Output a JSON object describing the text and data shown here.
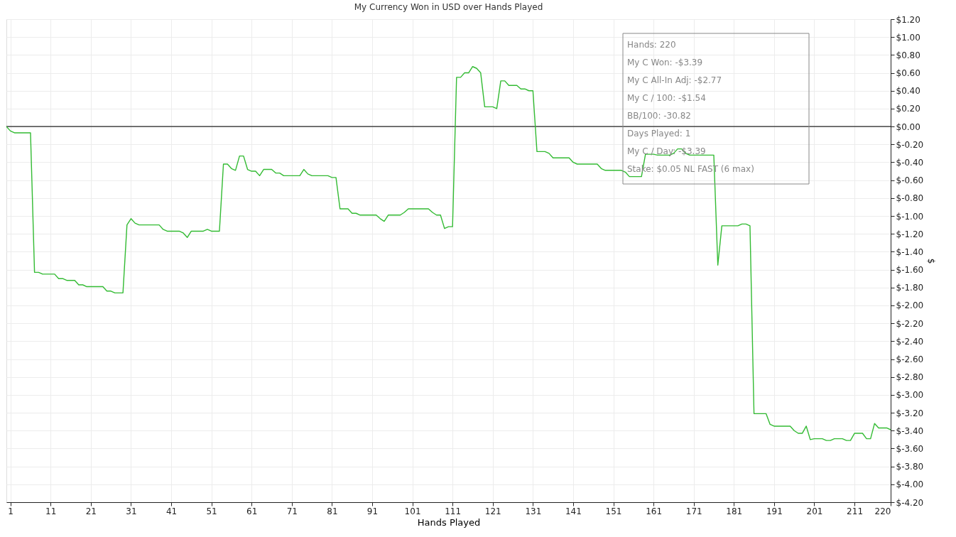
{
  "chart_data": {
    "type": "line",
    "title": "My Currency Won in USD over Hands Played",
    "xlabel": "Hands Played",
    "ylabel": "$",
    "x": [
      0,
      1,
      2,
      6,
      7,
      8,
      9,
      12,
      13,
      14,
      15,
      17,
      18,
      19,
      20,
      24,
      25,
      26,
      27,
      29,
      30,
      31,
      32,
      33,
      38,
      39,
      40,
      43,
      44,
      45,
      46,
      49,
      50,
      51,
      53,
      54,
      55,
      56,
      57,
      58,
      59,
      60,
      61,
      62,
      63,
      64,
      66,
      67,
      68,
      69,
      73,
      74,
      75,
      76,
      80,
      81,
      82,
      83,
      85,
      86,
      87,
      88,
      92,
      93,
      94,
      95,
      98,
      99,
      100,
      105,
      106,
      107,
      108,
      109,
      110,
      111,
      112,
      113,
      114,
      115,
      116,
      117,
      118,
      119,
      121,
      122,
      123,
      124,
      125,
      127,
      128,
      129,
      130,
      131,
      132,
      134,
      135,
      136,
      140,
      141,
      142,
      147,
      148,
      149,
      153,
      154,
      155,
      158,
      159,
      161,
      162,
      165,
      166,
      167,
      168,
      169,
      170,
      176,
      177,
      178,
      182,
      183,
      184,
      185,
      186,
      189,
      190,
      191,
      195,
      196,
      197,
      198,
      199,
      200,
      201,
      203,
      204,
      205,
      206,
      208,
      209,
      210,
      211,
      213,
      214,
      215,
      216,
      217,
      219,
      220
    ],
    "series": [
      {
        "color": "#33bb33",
        "values": [
          0,
          -0.05,
          -0.07,
          -0.07,
          -1.63,
          -1.63,
          -1.65,
          -1.65,
          -1.7,
          -1.7,
          -1.72,
          -1.72,
          -1.77,
          -1.77,
          -1.79,
          -1.79,
          -1.84,
          -1.84,
          -1.86,
          -1.86,
          -1.1,
          -1.03,
          -1.08,
          -1.1,
          -1.1,
          -1.15,
          -1.17,
          -1.17,
          -1.19,
          -1.24,
          -1.17,
          -1.17,
          -1.15,
          -1.17,
          -1.17,
          -0.42,
          -0.42,
          -0.47,
          -0.49,
          -0.33,
          -0.33,
          -0.48,
          -0.5,
          -0.5,
          -0.55,
          -0.48,
          -0.48,
          -0.52,
          -0.52,
          -0.55,
          -0.55,
          -0.48,
          -0.53,
          -0.55,
          -0.55,
          -0.57,
          -0.57,
          -0.92,
          -0.92,
          -0.97,
          -0.97,
          -0.99,
          -0.99,
          -1.03,
          -1.06,
          -0.99,
          -0.99,
          -0.96,
          -0.92,
          -0.92,
          -0.96,
          -0.99,
          -0.99,
          -1.14,
          -1.12,
          -1.12,
          0.55,
          0.55,
          0.6,
          0.6,
          0.67,
          0.65,
          0.6,
          0.22,
          0.22,
          0.2,
          0.51,
          0.51,
          0.46,
          0.46,
          0.42,
          0.42,
          0.4,
          0.4,
          -0.28,
          -0.28,
          -0.3,
          -0.35,
          -0.35,
          -0.4,
          -0.42,
          -0.42,
          -0.47,
          -0.49,
          -0.49,
          -0.51,
          -0.56,
          -0.56,
          -0.31,
          -0.31,
          -0.32,
          -0.32,
          -0.3,
          -0.25,
          -0.25,
          -0.3,
          -0.32,
          -0.32,
          -1.55,
          -1.11,
          -1.11,
          -1.09,
          -1.09,
          -1.11,
          -3.21,
          -3.21,
          -3.33,
          -3.35,
          -3.35,
          -3.4,
          -3.43,
          -3.43,
          -3.35,
          -3.5,
          -3.49,
          -3.49,
          -3.51,
          -3.51,
          -3.49,
          -3.49,
          -3.51,
          -3.51,
          -3.43,
          -3.43,
          -3.49,
          -3.49,
          -3.32,
          -3.37,
          -3.37,
          -3.39
        ]
      }
    ],
    "xlim": [
      0,
      220
    ],
    "xticks": [
      1,
      11,
      21,
      31,
      41,
      51,
      61,
      71,
      81,
      91,
      101,
      111,
      121,
      131,
      141,
      151,
      161,
      171,
      181,
      191,
      201,
      211,
      220
    ],
    "ylim": [
      -4.2,
      1.2
    ],
    "yticks": [
      {
        "value": 1.2,
        "label": "$1.20"
      },
      {
        "value": 1.0,
        "label": "$1.00"
      },
      {
        "value": 0.8,
        "label": "$0.80"
      },
      {
        "value": 0.6,
        "label": "$0.60"
      },
      {
        "value": 0.4,
        "label": "$0.40"
      },
      {
        "value": 0.2,
        "label": "$0.20"
      },
      {
        "value": 0,
        "label": "$0.00"
      },
      {
        "value": -0.2,
        "label": "$-0.20"
      },
      {
        "value": -0.4,
        "label": "$-0.40"
      },
      {
        "value": -0.6,
        "label": "$-0.60"
      },
      {
        "value": -0.8,
        "label": "$-0.80"
      },
      {
        "value": -1.0,
        "label": "$-1.00"
      },
      {
        "value": -1.2,
        "label": "$-1.20"
      },
      {
        "value": -1.4,
        "label": "$-1.40"
      },
      {
        "value": -1.6,
        "label": "$-1.60"
      },
      {
        "value": -1.8,
        "label": "$-1.80"
      },
      {
        "value": -2.0,
        "label": "$-2.00"
      },
      {
        "value": -2.2,
        "label": "$-2.20"
      },
      {
        "value": -2.4,
        "label": "$-2.40"
      },
      {
        "value": -2.6,
        "label": "$-2.60"
      },
      {
        "value": -2.8,
        "label": "$-2.80"
      },
      {
        "value": -3.0,
        "label": "$-3.00"
      },
      {
        "value": -3.2,
        "label": "$-3.20"
      },
      {
        "value": -3.4,
        "label": "$-3.40"
      },
      {
        "value": -3.6,
        "label": "$-3.60"
      },
      {
        "value": -3.8,
        "label": "$-3.80"
      },
      {
        "value": -4.0,
        "label": "$-4.00"
      },
      {
        "value": -4.2,
        "label": "$-4.20"
      }
    ],
    "ref_lines": [
      {
        "axis": "y",
        "value": 0,
        "label": null,
        "color": "#222222"
      }
    ],
    "annotations": [
      "Hands: 220",
      "My C Won: -$3.39",
      "My C All-In Adj: -$2.77",
      "My C / 100: -$1.54",
      "BB/100: -30.82",
      "Days Played: 1",
      "My C / Day: -$3.39",
      "Stake: $0.05 NL FAST (6 max)"
    ],
    "grid": true,
    "marker": "none",
    "line_style": "solid"
  }
}
